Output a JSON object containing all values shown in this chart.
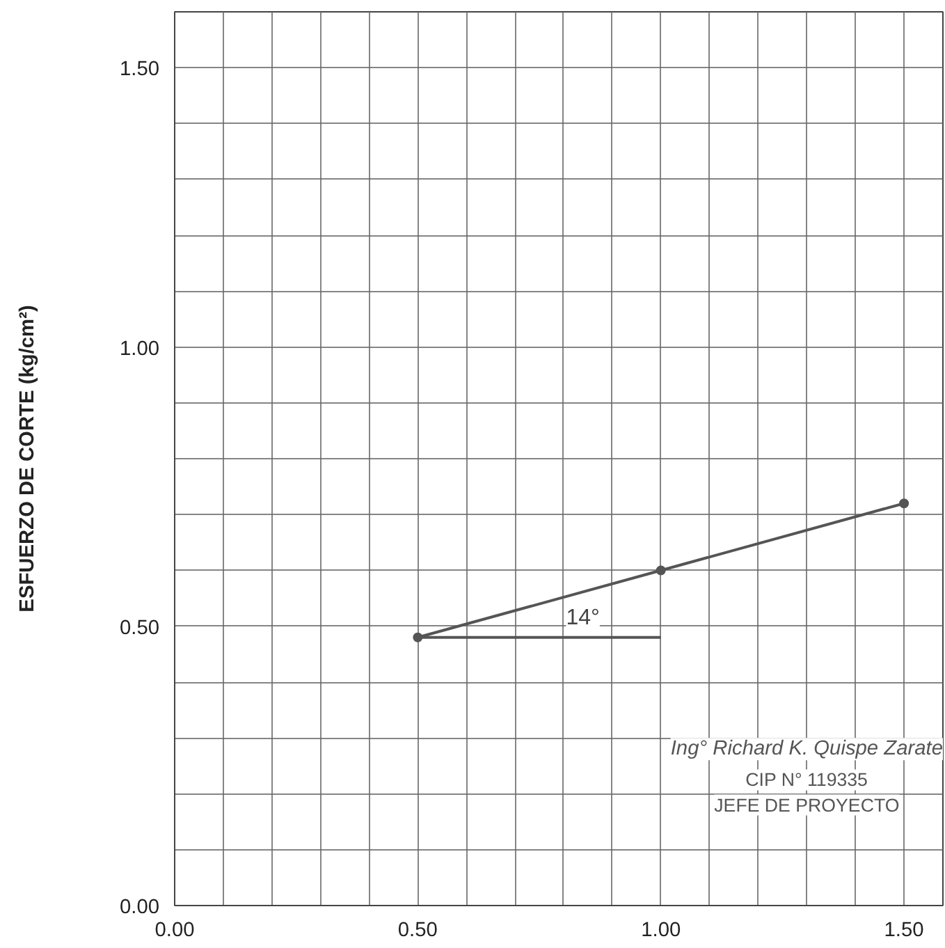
{
  "chart_data": {
    "type": "line",
    "ylabel": "ESFUERZO DE CORTE (kg/cm²)",
    "xlim": [
      0,
      1.58
    ],
    "ylim": [
      0,
      1.6
    ],
    "xticks": [
      {
        "value": 0,
        "label": "0.00"
      },
      {
        "value": 0.1,
        "label": null
      },
      {
        "value": 0.2,
        "label": null
      },
      {
        "value": 0.3,
        "label": null
      },
      {
        "value": 0.4,
        "label": null
      },
      {
        "value": 0.5,
        "label": "0.50"
      },
      {
        "value": 0.6,
        "label": null
      },
      {
        "value": 0.7,
        "label": null
      },
      {
        "value": 0.8,
        "label": null
      },
      {
        "value": 0.9,
        "label": null
      },
      {
        "value": 1.0,
        "label": "1.00"
      },
      {
        "value": 1.1,
        "label": null
      },
      {
        "value": 1.2,
        "label": null
      },
      {
        "value": 1.3,
        "label": null
      },
      {
        "value": 1.4,
        "label": null
      },
      {
        "value": 1.5,
        "label": "1.50"
      }
    ],
    "yticks": [
      {
        "value": 0,
        "label": "0.00"
      },
      {
        "value": 0.1,
        "label": null
      },
      {
        "value": 0.2,
        "label": null
      },
      {
        "value": 0.3,
        "label": null
      },
      {
        "value": 0.4,
        "label": null
      },
      {
        "value": 0.5,
        "label": "0.50"
      },
      {
        "value": 0.6,
        "label": null
      },
      {
        "value": 0.7,
        "label": null
      },
      {
        "value": 0.8,
        "label": null
      },
      {
        "value": 0.9,
        "label": null
      },
      {
        "value": 1.0,
        "label": "1.00"
      },
      {
        "value": 1.1,
        "label": null
      },
      {
        "value": 1.2,
        "label": null
      },
      {
        "value": 1.3,
        "label": null
      },
      {
        "value": 1.4,
        "label": null
      },
      {
        "value": 1.5,
        "label": "1.50"
      }
    ],
    "grid": true,
    "series": [
      {
        "color": "#555555",
        "x": [
          0.5,
          1.0,
          1.5
        ],
        "values": [
          0.48,
          0.6,
          0.72
        ],
        "marker": "circle"
      },
      {
        "color": "#555555",
        "x": [
          0.5,
          1.0
        ],
        "values": [
          0.48,
          0.48
        ],
        "marker": "none"
      }
    ],
    "annotations": [
      "14°",
      "Ing° Richard K. Quispe Zarate",
      "CIP N° 119335",
      "JEFE DE PROYECTO"
    ]
  }
}
